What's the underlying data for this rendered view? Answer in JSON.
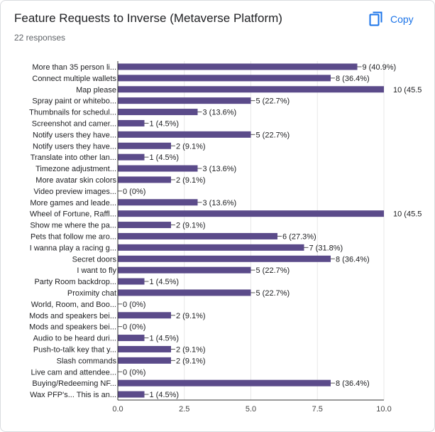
{
  "header": {
    "title": "Feature Requests to Inverse (Metaverse Platform)",
    "responses": "22 responses",
    "copy_label": "Copy"
  },
  "colors": {
    "bar": "#5b4b8a",
    "accent": "#1a73e8",
    "axis": "#333333",
    "grid": "#e8e8e8"
  },
  "icons": {
    "copy": "copy-icon"
  },
  "chart_data": {
    "type": "bar",
    "orientation": "horizontal",
    "title": "",
    "xlabel": "",
    "ylabel": "",
    "xlim": [
      0,
      10
    ],
    "grid": true,
    "categories": [
      "More than 35 person li...",
      "Connect multiple wallets",
      "Map please",
      "Spray paint or whitebo...",
      "Thumbnails for schedul...",
      "Screenshot and camer...",
      "Notify users they have...",
      "Notify users they have...",
      "Translate into other lan...",
      "Timezone adjustment...",
      "More avatar skin colors",
      "Video preview images...",
      "More games and leade...",
      "Wheel of Fortune, Raffl...",
      "Show me where the pa...",
      "Pets that follow me aro...",
      "I wanna play a racing g...",
      "Secret doors",
      "I want to fly",
      "Party Room backdrop...",
      "Proximity chat",
      "World, Room, and Boo...",
      "Mods and speakers bei...",
      "Mods and speakers bei...",
      "Audio to be heard duri...",
      "Push-to-talk key that y...",
      "Slash commands",
      "Live cam and attendee...",
      "Buying/Redeeming NF...",
      "Wax PFP's... This is an..."
    ],
    "values": [
      9,
      8,
      10,
      5,
      3,
      1,
      5,
      2,
      1,
      3,
      2,
      0,
      3,
      10,
      2,
      6,
      7,
      8,
      5,
      1,
      5,
      0,
      2,
      0,
      1,
      2,
      2,
      0,
      8,
      1
    ],
    "value_labels": [
      "9 (40.9%)",
      "8 (36.4%)",
      "10 (45.5",
      "5 (22.7%)",
      "3 (13.6%)",
      "1 (4.5%)",
      "5 (22.7%)",
      "2 (9.1%)",
      "1 (4.5%)",
      "3 (13.6%)",
      "2 (9.1%)",
      "0 (0%)",
      "3 (13.6%)",
      "10 (45.5",
      "2 (9.1%)",
      "6 (27.3%)",
      "7 (31.8%)",
      "8 (36.4%)",
      "5 (22.7%)",
      "1 (4.5%)",
      "5 (22.7%)",
      "0 (0%)",
      "2 (9.1%)",
      "0 (0%)",
      "1 (4.5%)",
      "2 (9.1%)",
      "2 (9.1%)",
      "0 (0%)",
      "8 (36.4%)",
      "1 (4.5%)"
    ],
    "xticks": [
      0,
      2.5,
      5,
      7.5,
      10
    ],
    "xtick_labels": [
      "0.0",
      "2.5",
      "5.0",
      "7.5",
      "10.0"
    ]
  }
}
